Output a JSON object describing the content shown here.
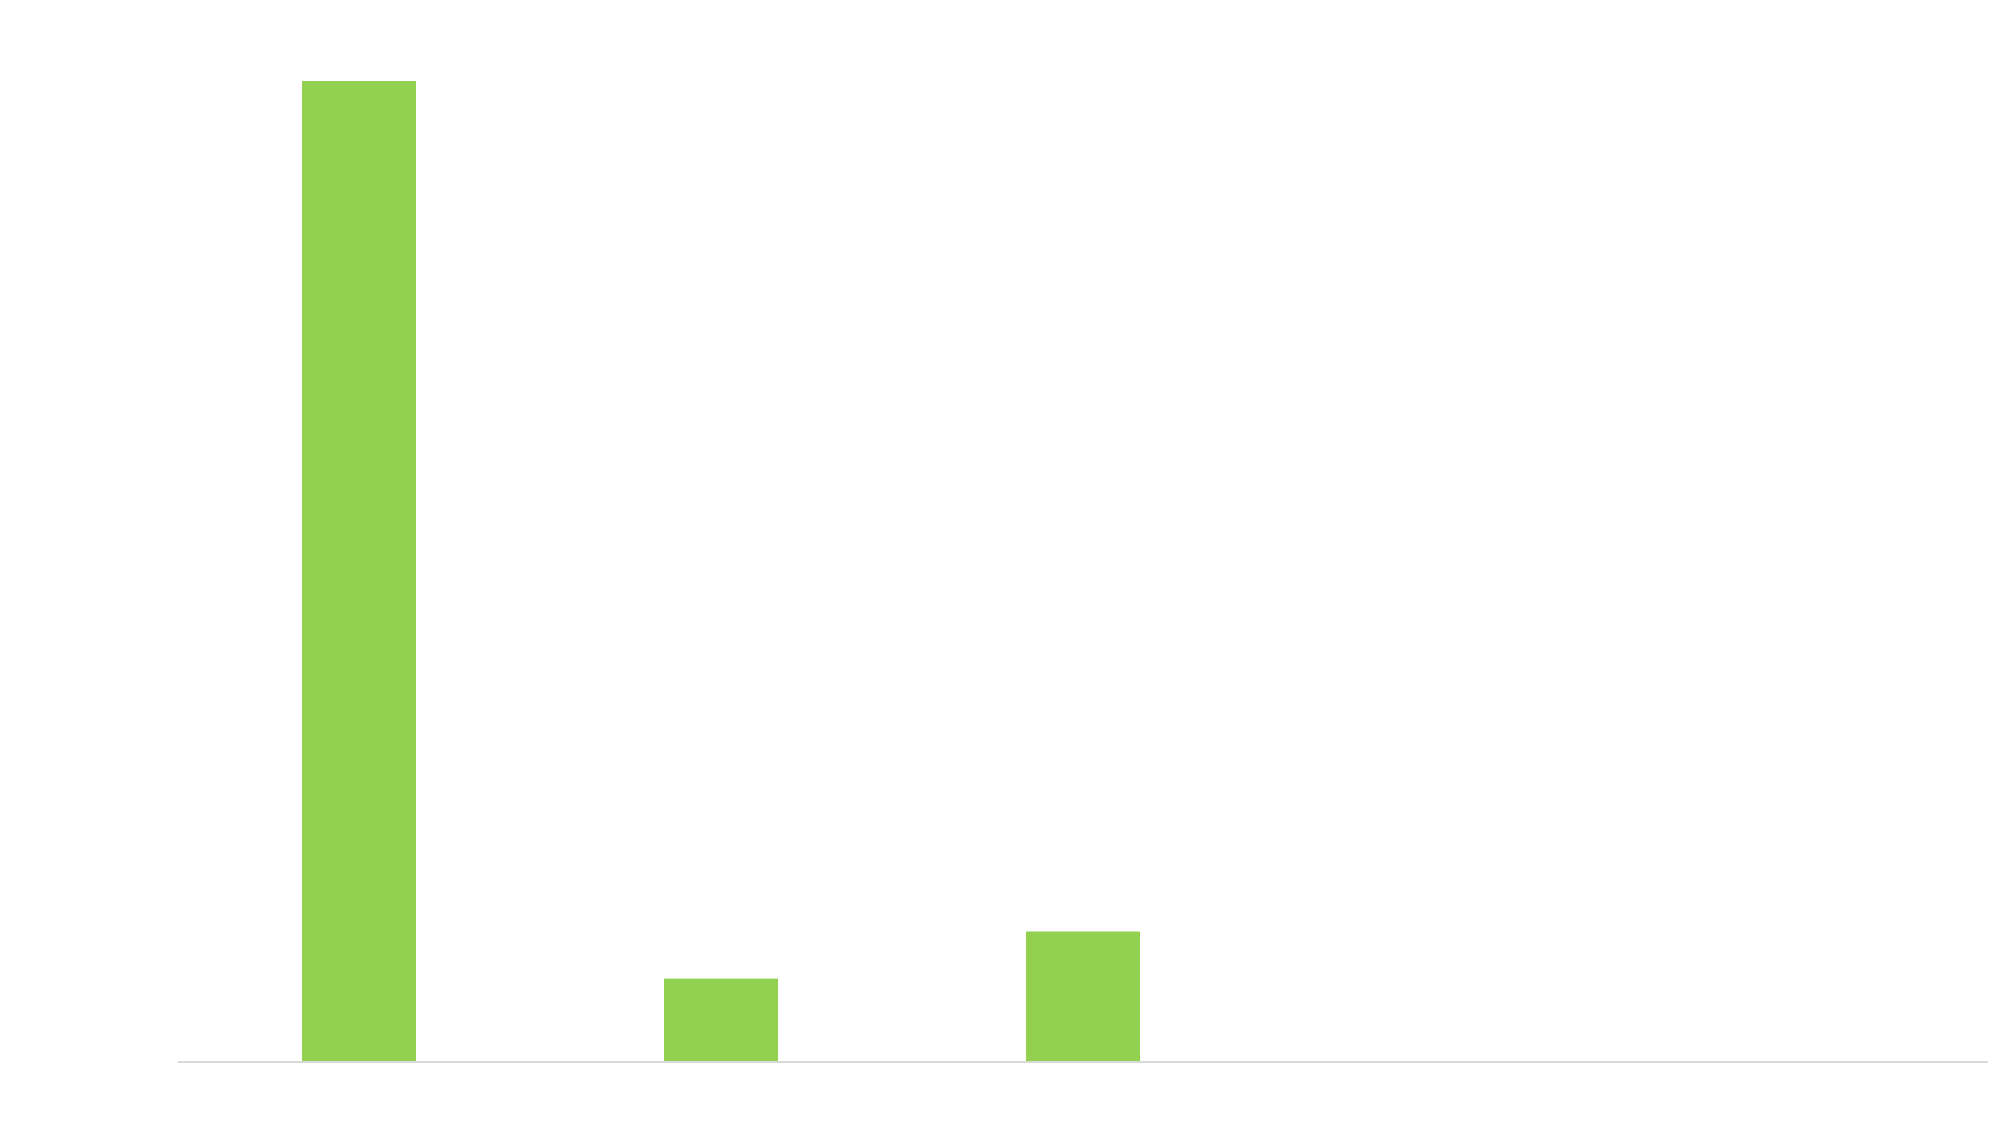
{
  "chart_data": {
    "type": "bar",
    "categories": [
      "",
      "",
      "",
      "",
      ""
    ],
    "values": [
      100,
      8.5,
      13.3,
      0,
      0
    ],
    "ylim": [
      0,
      100
    ],
    "grid": false,
    "legend": "none",
    "colors": {
      "bar": "#92d050",
      "baseline": "#d9d9d9",
      "background": "#ffffff"
    }
  }
}
